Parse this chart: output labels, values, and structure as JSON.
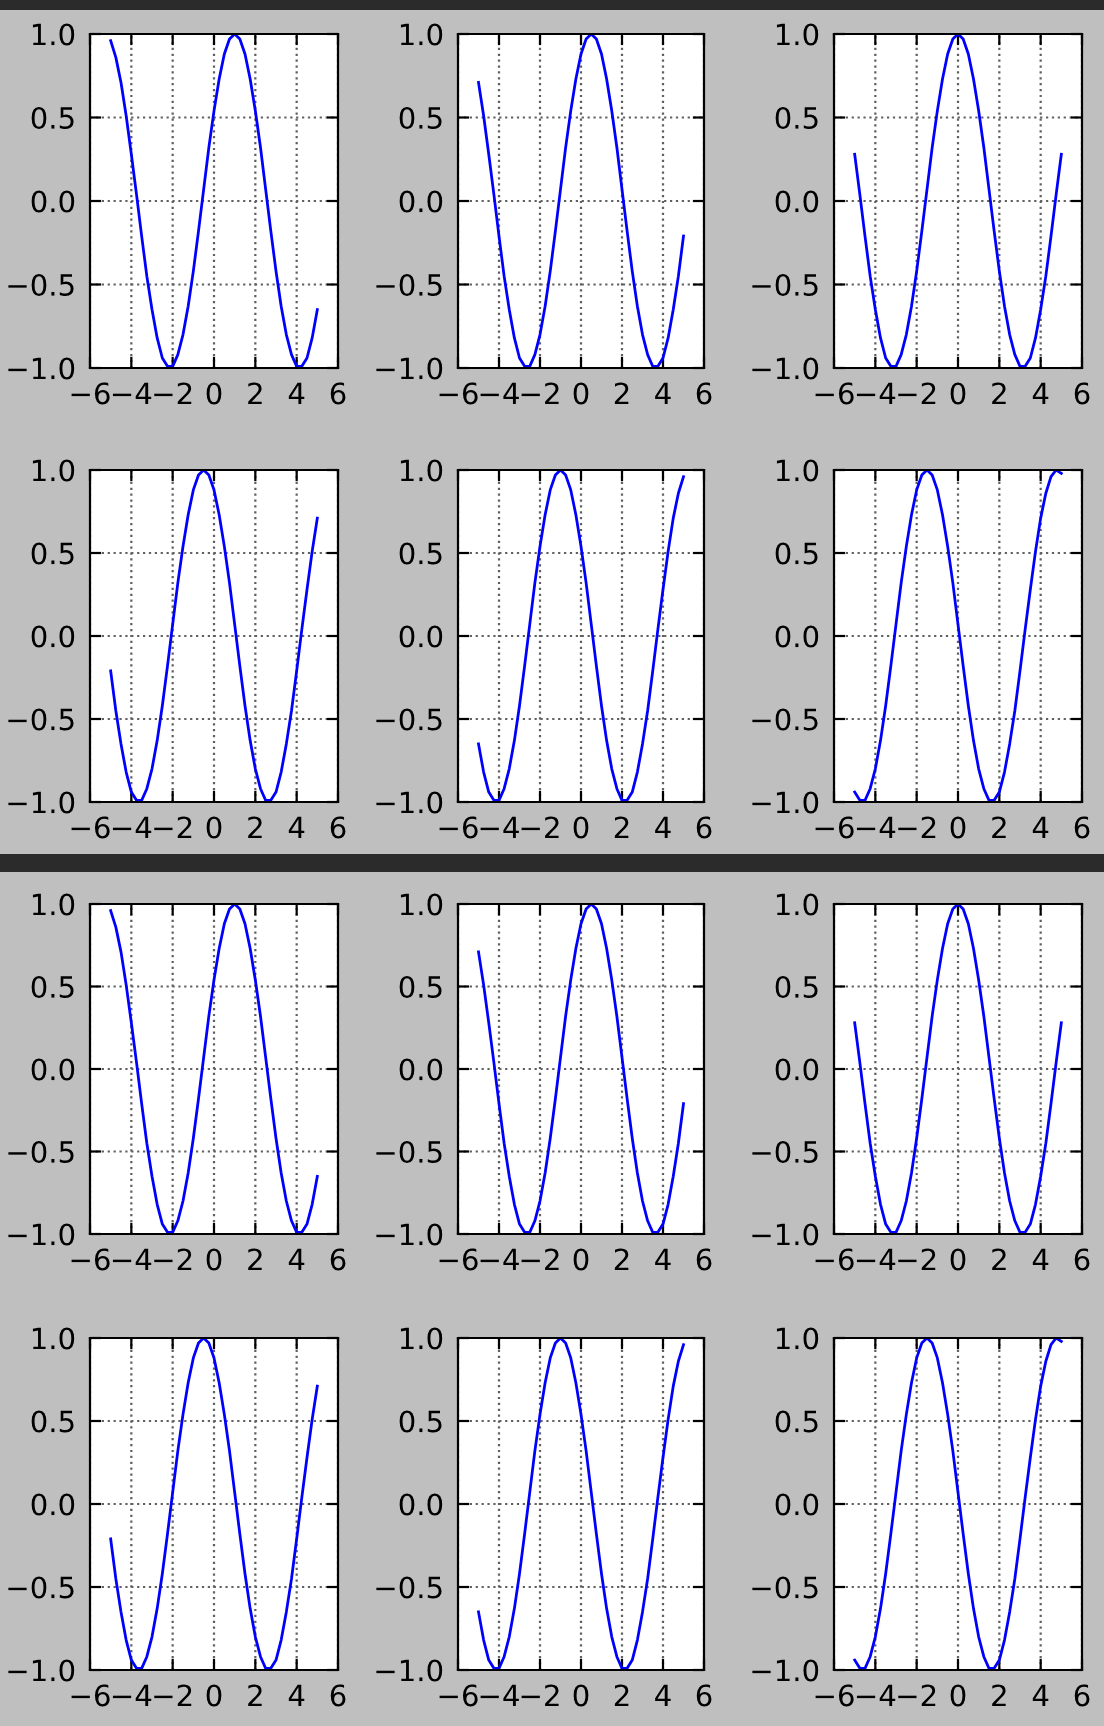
{
  "chart_data": [
    {
      "type": "line",
      "color": "#0000ff",
      "grid": true,
      "xlim": [
        -6,
        6
      ],
      "ylim": [
        -1,
        1
      ],
      "xticks": [
        {
          "value": -6,
          "label": "−6"
        },
        {
          "value": -4,
          "label": "−4"
        },
        {
          "value": -2,
          "label": "−2"
        },
        0,
        2,
        4,
        6
      ],
      "yticks": [
        {
          "value": -1,
          "label": "−1.0"
        },
        {
          "value": -0.5,
          "label": "−0.5"
        },
        {
          "value": 0,
          "label": "0.0"
        },
        {
          "value": 0.5,
          "label": "0.5"
        },
        {
          "value": 1,
          "label": "1.0"
        }
      ],
      "x": [
        -5,
        -4.75,
        -4.5,
        -4.25,
        -4,
        -3.75,
        -3.5,
        -3.25,
        -3,
        -2.75,
        -2.5,
        -2.25,
        -2,
        -1.75,
        -1.5,
        -1.25,
        -1,
        -0.75,
        -0.5,
        -0.25,
        0,
        0.25,
        0.5,
        0.75,
        1,
        1.25,
        1.5,
        1.75,
        2,
        2.25,
        2.5,
        2.75,
        3,
        3.25,
        3.5,
        3.75,
        4,
        4.25,
        4.5,
        4.75,
        5
      ],
      "values": [
        0.96,
        0.86,
        0.71,
        0.51,
        0.28,
        0.04,
        -0.21,
        -0.45,
        -0.65,
        -0.82,
        -0.94,
        -0.99,
        -0.99,
        -0.92,
        -0.8,
        -0.63,
        -0.42,
        -0.18,
        0.07,
        0.32,
        0.54,
        0.73,
        0.88,
        0.97,
        1.0,
        0.97,
        0.88,
        0.73,
        0.54,
        0.32,
        0.07,
        -0.18,
        -0.42,
        -0.63,
        -0.8,
        -0.92,
        -0.99,
        -0.99,
        -0.94,
        -0.82,
        -0.65
      ]
    },
    {
      "type": "line",
      "color": "#0000ff",
      "grid": true,
      "xlim": [
        -6,
        6
      ],
      "ylim": [
        -1,
        1
      ],
      "xticks": [
        {
          "value": -6,
          "label": "−6"
        },
        {
          "value": -4,
          "label": "−4"
        },
        {
          "value": -2,
          "label": "−2"
        },
        0,
        2,
        4,
        6
      ],
      "yticks": [
        {
          "value": -1,
          "label": "−1.0"
        },
        {
          "value": -0.5,
          "label": "−0.5"
        },
        {
          "value": 0,
          "label": "0.0"
        },
        {
          "value": 0.5,
          "label": "0.5"
        },
        {
          "value": 1,
          "label": "1.0"
        }
      ],
      "x": [
        -5,
        -4.75,
        -4.5,
        -4.25,
        -4,
        -3.75,
        -3.5,
        -3.25,
        -3,
        -2.75,
        -2.5,
        -2.25,
        -2,
        -1.75,
        -1.5,
        -1.25,
        -1,
        -0.75,
        -0.5,
        -0.25,
        0,
        0.25,
        0.5,
        0.75,
        1,
        1.25,
        1.5,
        1.75,
        2,
        2.25,
        2.5,
        2.75,
        3,
        3.25,
        3.5,
        3.75,
        4,
        4.25,
        4.5,
        4.75,
        5
      ],
      "values": [
        0.71,
        0.51,
        0.28,
        0.04,
        -0.21,
        -0.45,
        -0.65,
        -0.82,
        -0.94,
        -0.99,
        -0.99,
        -0.92,
        -0.8,
        -0.63,
        -0.42,
        -0.18,
        0.07,
        0.32,
        0.54,
        0.73,
        0.88,
        0.97,
        1.0,
        0.97,
        0.88,
        0.73,
        0.54,
        0.32,
        0.07,
        -0.18,
        -0.42,
        -0.63,
        -0.8,
        -0.92,
        -0.99,
        -0.99,
        -0.94,
        -0.82,
        -0.65,
        -0.45,
        -0.21
      ]
    },
    {
      "type": "line",
      "color": "#0000ff",
      "grid": true,
      "xlim": [
        -6,
        6
      ],
      "ylim": [
        -1,
        1
      ],
      "xticks": [
        {
          "value": -6,
          "label": "−6"
        },
        {
          "value": -4,
          "label": "−4"
        },
        {
          "value": -2,
          "label": "−2"
        },
        0,
        2,
        4,
        6
      ],
      "yticks": [
        {
          "value": -1,
          "label": "−1.0"
        },
        {
          "value": -0.5,
          "label": "−0.5"
        },
        {
          "value": 0,
          "label": "0.0"
        },
        {
          "value": 0.5,
          "label": "0.5"
        },
        {
          "value": 1,
          "label": "1.0"
        }
      ],
      "x": [
        -5,
        -4.75,
        -4.5,
        -4.25,
        -4,
        -3.75,
        -3.5,
        -3.25,
        -3,
        -2.75,
        -2.5,
        -2.25,
        -2,
        -1.75,
        -1.5,
        -1.25,
        -1,
        -0.75,
        -0.5,
        -0.25,
        0,
        0.25,
        0.5,
        0.75,
        1,
        1.25,
        1.5,
        1.75,
        2,
        2.25,
        2.5,
        2.75,
        3,
        3.25,
        3.5,
        3.75,
        4,
        4.25,
        4.5,
        4.75,
        5
      ],
      "values": [
        0.28,
        0.04,
        -0.21,
        -0.45,
        -0.65,
        -0.82,
        -0.94,
        -0.99,
        -0.99,
        -0.92,
        -0.8,
        -0.63,
        -0.42,
        -0.18,
        0.07,
        0.32,
        0.54,
        0.73,
        0.88,
        0.97,
        1.0,
        0.97,
        0.88,
        0.73,
        0.54,
        0.32,
        0.07,
        -0.18,
        -0.42,
        -0.63,
        -0.8,
        -0.92,
        -0.99,
        -0.99,
        -0.94,
        -0.82,
        -0.65,
        -0.45,
        -0.21,
        0.04,
        0.28
      ]
    },
    {
      "type": "line",
      "color": "#0000ff",
      "grid": true,
      "xlim": [
        -6,
        6
      ],
      "ylim": [
        -1,
        1
      ],
      "xticks": [
        {
          "value": -6,
          "label": "−6"
        },
        {
          "value": -4,
          "label": "−4"
        },
        {
          "value": -2,
          "label": "−2"
        },
        0,
        2,
        4,
        6
      ],
      "yticks": [
        {
          "value": -1,
          "label": "−1.0"
        },
        {
          "value": -0.5,
          "label": "−0.5"
        },
        {
          "value": 0,
          "label": "0.0"
        },
        {
          "value": 0.5,
          "label": "0.5"
        },
        {
          "value": 1,
          "label": "1.0"
        }
      ],
      "x": [
        -5,
        -4.75,
        -4.5,
        -4.25,
        -4,
        -3.75,
        -3.5,
        -3.25,
        -3,
        -2.75,
        -2.5,
        -2.25,
        -2,
        -1.75,
        -1.5,
        -1.25,
        -1,
        -0.75,
        -0.5,
        -0.25,
        0,
        0.25,
        0.5,
        0.75,
        1,
        1.25,
        1.5,
        1.75,
        2,
        2.25,
        2.5,
        2.75,
        3,
        3.25,
        3.5,
        3.75,
        4,
        4.25,
        4.5,
        4.75,
        5
      ],
      "values": [
        -0.21,
        -0.45,
        -0.65,
        -0.82,
        -0.94,
        -0.99,
        -0.99,
        -0.92,
        -0.8,
        -0.63,
        -0.42,
        -0.18,
        0.07,
        0.32,
        0.54,
        0.73,
        0.88,
        0.97,
        1.0,
        0.97,
        0.88,
        0.73,
        0.54,
        0.32,
        0.07,
        -0.18,
        -0.42,
        -0.63,
        -0.8,
        -0.92,
        -0.99,
        -0.99,
        -0.94,
        -0.82,
        -0.65,
        -0.45,
        -0.21,
        0.04,
        0.28,
        0.51,
        0.71
      ]
    },
    {
      "type": "line",
      "color": "#0000ff",
      "grid": true,
      "xlim": [
        -6,
        6
      ],
      "ylim": [
        -1,
        1
      ],
      "xticks": [
        {
          "value": -6,
          "label": "−6"
        },
        {
          "value": -4,
          "label": "−4"
        },
        {
          "value": -2,
          "label": "−2"
        },
        0,
        2,
        4,
        6
      ],
      "yticks": [
        {
          "value": -1,
          "label": "−1.0"
        },
        {
          "value": -0.5,
          "label": "−0.5"
        },
        {
          "value": 0,
          "label": "0.0"
        },
        {
          "value": 0.5,
          "label": "0.5"
        },
        {
          "value": 1,
          "label": "1.0"
        }
      ],
      "x": [
        -5,
        -4.75,
        -4.5,
        -4.25,
        -4,
        -3.75,
        -3.5,
        -3.25,
        -3,
        -2.75,
        -2.5,
        -2.25,
        -2,
        -1.75,
        -1.5,
        -1.25,
        -1,
        -0.75,
        -0.5,
        -0.25,
        0,
        0.25,
        0.5,
        0.75,
        1,
        1.25,
        1.5,
        1.75,
        2,
        2.25,
        2.5,
        2.75,
        3,
        3.25,
        3.5,
        3.75,
        4,
        4.25,
        4.5,
        4.75,
        5
      ],
      "values": [
        -0.65,
        -0.82,
        -0.94,
        -0.99,
        -0.99,
        -0.92,
        -0.8,
        -0.63,
        -0.42,
        -0.18,
        0.07,
        0.32,
        0.54,
        0.73,
        0.88,
        0.97,
        1.0,
        0.97,
        0.88,
        0.73,
        0.54,
        0.32,
        0.07,
        -0.18,
        -0.42,
        -0.63,
        -0.8,
        -0.92,
        -0.99,
        -0.99,
        -0.94,
        -0.82,
        -0.65,
        -0.45,
        -0.21,
        0.04,
        0.28,
        0.51,
        0.71,
        0.86,
        0.96
      ]
    },
    {
      "type": "line",
      "color": "#0000ff",
      "grid": true,
      "xlim": [
        -6,
        6
      ],
      "ylim": [
        -1,
        1
      ],
      "xticks": [
        {
          "value": -6,
          "label": "−6"
        },
        {
          "value": -4,
          "label": "−4"
        },
        {
          "value": -2,
          "label": "−2"
        },
        0,
        2,
        4,
        6
      ],
      "yticks": [
        {
          "value": -1,
          "label": "−1.0"
        },
        {
          "value": -0.5,
          "label": "−0.5"
        },
        {
          "value": 0,
          "label": "0.0"
        },
        {
          "value": 0.5,
          "label": "0.5"
        },
        {
          "value": 1,
          "label": "1.0"
        }
      ],
      "x": [
        -5,
        -4.75,
        -4.5,
        -4.25,
        -4,
        -3.75,
        -3.5,
        -3.25,
        -3,
        -2.75,
        -2.5,
        -2.25,
        -2,
        -1.75,
        -1.5,
        -1.25,
        -1,
        -0.75,
        -0.5,
        -0.25,
        0,
        0.25,
        0.5,
        0.75,
        1,
        1.25,
        1.5,
        1.75,
        2,
        2.25,
        2.5,
        2.75,
        3,
        3.25,
        3.5,
        3.75,
        4,
        4.25,
        4.5,
        4.75,
        5
      ],
      "values": [
        -0.94,
        -0.99,
        -0.99,
        -0.92,
        -0.8,
        -0.63,
        -0.42,
        -0.18,
        0.07,
        0.32,
        0.54,
        0.73,
        0.88,
        0.97,
        1.0,
        0.97,
        0.88,
        0.73,
        0.54,
        0.32,
        0.07,
        -0.18,
        -0.42,
        -0.63,
        -0.8,
        -0.92,
        -0.99,
        -0.99,
        -0.94,
        -0.82,
        -0.65,
        -0.45,
        -0.21,
        0.04,
        0.28,
        0.51,
        0.71,
        0.86,
        0.96,
        1.0,
        0.98
      ]
    },
    {
      "type": "line",
      "color": "#0000ff",
      "grid": true,
      "xlim": [
        -6,
        6
      ],
      "ylim": [
        -1,
        1
      ],
      "xticks": [
        {
          "value": -6,
          "label": "−6"
        },
        {
          "value": -4,
          "label": "−4"
        },
        {
          "value": -2,
          "label": "−2"
        },
        0,
        2,
        4,
        6
      ],
      "yticks": [
        {
          "value": -1,
          "label": "−1.0"
        },
        {
          "value": -0.5,
          "label": "−0.5"
        },
        {
          "value": 0,
          "label": "0.0"
        },
        {
          "value": 0.5,
          "label": "0.5"
        },
        {
          "value": 1,
          "label": "1.0"
        }
      ],
      "x": [
        -5,
        -4.75,
        -4.5,
        -4.25,
        -4,
        -3.75,
        -3.5,
        -3.25,
        -3,
        -2.75,
        -2.5,
        -2.25,
        -2,
        -1.75,
        -1.5,
        -1.25,
        -1,
        -0.75,
        -0.5,
        -0.25,
        0,
        0.25,
        0.5,
        0.75,
        1,
        1.25,
        1.5,
        1.75,
        2,
        2.25,
        2.5,
        2.75,
        3,
        3.25,
        3.5,
        3.75,
        4,
        4.25,
        4.5,
        4.75,
        5
      ],
      "values": [
        0.96,
        0.86,
        0.71,
        0.51,
        0.28,
        0.04,
        -0.21,
        -0.45,
        -0.65,
        -0.82,
        -0.94,
        -0.99,
        -0.99,
        -0.92,
        -0.8,
        -0.63,
        -0.42,
        -0.18,
        0.07,
        0.32,
        0.54,
        0.73,
        0.88,
        0.97,
        1.0,
        0.97,
        0.88,
        0.73,
        0.54,
        0.32,
        0.07,
        -0.18,
        -0.42,
        -0.63,
        -0.8,
        -0.92,
        -0.99,
        -0.99,
        -0.94,
        -0.82,
        -0.65
      ]
    },
    {
      "type": "line",
      "color": "#0000ff",
      "grid": true,
      "xlim": [
        -6,
        6
      ],
      "ylim": [
        -1,
        1
      ],
      "xticks": [
        {
          "value": -6,
          "label": "−6"
        },
        {
          "value": -4,
          "label": "−4"
        },
        {
          "value": -2,
          "label": "−2"
        },
        0,
        2,
        4,
        6
      ],
      "yticks": [
        {
          "value": -1,
          "label": "−1.0"
        },
        {
          "value": -0.5,
          "label": "−0.5"
        },
        {
          "value": 0,
          "label": "0.0"
        },
        {
          "value": 0.5,
          "label": "0.5"
        },
        {
          "value": 1,
          "label": "1.0"
        }
      ],
      "x": [
        -5,
        -4.75,
        -4.5,
        -4.25,
        -4,
        -3.75,
        -3.5,
        -3.25,
        -3,
        -2.75,
        -2.5,
        -2.25,
        -2,
        -1.75,
        -1.5,
        -1.25,
        -1,
        -0.75,
        -0.5,
        -0.25,
        0,
        0.25,
        0.5,
        0.75,
        1,
        1.25,
        1.5,
        1.75,
        2,
        2.25,
        2.5,
        2.75,
        3,
        3.25,
        3.5,
        3.75,
        4,
        4.25,
        4.5,
        4.75,
        5
      ],
      "values": [
        0.71,
        0.51,
        0.28,
        0.04,
        -0.21,
        -0.45,
        -0.65,
        -0.82,
        -0.94,
        -0.99,
        -0.99,
        -0.92,
        -0.8,
        -0.63,
        -0.42,
        -0.18,
        0.07,
        0.32,
        0.54,
        0.73,
        0.88,
        0.97,
        1.0,
        0.97,
        0.88,
        0.73,
        0.54,
        0.32,
        0.07,
        -0.18,
        -0.42,
        -0.63,
        -0.8,
        -0.92,
        -0.99,
        -0.99,
        -0.94,
        -0.82,
        -0.65,
        -0.45,
        -0.21
      ]
    },
    {
      "type": "line",
      "color": "#0000ff",
      "grid": true,
      "xlim": [
        -6,
        6
      ],
      "ylim": [
        -1,
        1
      ],
      "xticks": [
        {
          "value": -6,
          "label": "−6"
        },
        {
          "value": -4,
          "label": "−4"
        },
        {
          "value": -2,
          "label": "−2"
        },
        0,
        2,
        4,
        6
      ],
      "yticks": [
        {
          "value": -1,
          "label": "−1.0"
        },
        {
          "value": -0.5,
          "label": "−0.5"
        },
        {
          "value": 0,
          "label": "0.0"
        },
        {
          "value": 0.5,
          "label": "0.5"
        },
        {
          "value": 1,
          "label": "1.0"
        }
      ],
      "x": [
        -5,
        -4.75,
        -4.5,
        -4.25,
        -4,
        -3.75,
        -3.5,
        -3.25,
        -3,
        -2.75,
        -2.5,
        -2.25,
        -2,
        -1.75,
        -1.5,
        -1.25,
        -1,
        -0.75,
        -0.5,
        -0.25,
        0,
        0.25,
        0.5,
        0.75,
        1,
        1.25,
        1.5,
        1.75,
        2,
        2.25,
        2.5,
        2.75,
        3,
        3.25,
        3.5,
        3.75,
        4,
        4.25,
        4.5,
        4.75,
        5
      ],
      "values": [
        0.28,
        0.04,
        -0.21,
        -0.45,
        -0.65,
        -0.82,
        -0.94,
        -0.99,
        -0.99,
        -0.92,
        -0.8,
        -0.63,
        -0.42,
        -0.18,
        0.07,
        0.32,
        0.54,
        0.73,
        0.88,
        0.97,
        1.0,
        0.97,
        0.88,
        0.73,
        0.54,
        0.32,
        0.07,
        -0.18,
        -0.42,
        -0.63,
        -0.8,
        -0.92,
        -0.99,
        -0.99,
        -0.94,
        -0.82,
        -0.65,
        -0.45,
        -0.21,
        0.04,
        0.28
      ]
    },
    {
      "type": "line",
      "color": "#0000ff",
      "grid": true,
      "xlim": [
        -6,
        6
      ],
      "ylim": [
        -1,
        1
      ],
      "xticks": [
        {
          "value": -6,
          "label": "−6"
        },
        {
          "value": -4,
          "label": "−4"
        },
        {
          "value": -2,
          "label": "−2"
        },
        0,
        2,
        4,
        6
      ],
      "yticks": [
        {
          "value": -1,
          "label": "−1.0"
        },
        {
          "value": -0.5,
          "label": "−0.5"
        },
        {
          "value": 0,
          "label": "0.0"
        },
        {
          "value": 0.5,
          "label": "0.5"
        },
        {
          "value": 1,
          "label": "1.0"
        }
      ],
      "x": [
        -5,
        -4.75,
        -4.5,
        -4.25,
        -4,
        -3.75,
        -3.5,
        -3.25,
        -3,
        -2.75,
        -2.5,
        -2.25,
        -2,
        -1.75,
        -1.5,
        -1.25,
        -1,
        -0.75,
        -0.5,
        -0.25,
        0,
        0.25,
        0.5,
        0.75,
        1,
        1.25,
        1.5,
        1.75,
        2,
        2.25,
        2.5,
        2.75,
        3,
        3.25,
        3.5,
        3.75,
        4,
        4.25,
        4.5,
        4.75,
        5
      ],
      "values": [
        -0.21,
        -0.45,
        -0.65,
        -0.82,
        -0.94,
        -0.99,
        -0.99,
        -0.92,
        -0.8,
        -0.63,
        -0.42,
        -0.18,
        0.07,
        0.32,
        0.54,
        0.73,
        0.88,
        0.97,
        1.0,
        0.97,
        0.88,
        0.73,
        0.54,
        0.32,
        0.07,
        -0.18,
        -0.42,
        -0.63,
        -0.8,
        -0.92,
        -0.99,
        -0.99,
        -0.94,
        -0.82,
        -0.65,
        -0.45,
        -0.21,
        0.04,
        0.28,
        0.51,
        0.71
      ]
    },
    {
      "type": "line",
      "color": "#0000ff",
      "grid": true,
      "xlim": [
        -6,
        6
      ],
      "ylim": [
        -1,
        1
      ],
      "xticks": [
        {
          "value": -6,
          "label": "−6"
        },
        {
          "value": -4,
          "label": "−4"
        },
        {
          "value": -2,
          "label": "−2"
        },
        0,
        2,
        4,
        6
      ],
      "yticks": [
        {
          "value": -1,
          "label": "−1.0"
        },
        {
          "value": -0.5,
          "label": "−0.5"
        },
        {
          "value": 0,
          "label": "0.0"
        },
        {
          "value": 0.5,
          "label": "0.5"
        },
        {
          "value": 1,
          "label": "1.0"
        }
      ],
      "x": [
        -5,
        -4.75,
        -4.5,
        -4.25,
        -4,
        -3.75,
        -3.5,
        -3.25,
        -3,
        -2.75,
        -2.5,
        -2.25,
        -2,
        -1.75,
        -1.5,
        -1.25,
        -1,
        -0.75,
        -0.5,
        -0.25,
        0,
        0.25,
        0.5,
        0.75,
        1,
        1.25,
        1.5,
        1.75,
        2,
        2.25,
        2.5,
        2.75,
        3,
        3.25,
        3.5,
        3.75,
        4,
        4.25,
        4.5,
        4.75,
        5
      ],
      "values": [
        -0.65,
        -0.82,
        -0.94,
        -0.99,
        -0.99,
        -0.92,
        -0.8,
        -0.63,
        -0.42,
        -0.18,
        0.07,
        0.32,
        0.54,
        0.73,
        0.88,
        0.97,
        1.0,
        0.97,
        0.88,
        0.73,
        0.54,
        0.32,
        0.07,
        -0.18,
        -0.42,
        -0.63,
        -0.8,
        -0.92,
        -0.99,
        -0.99,
        -0.94,
        -0.82,
        -0.65,
        -0.45,
        -0.21,
        0.04,
        0.28,
        0.51,
        0.71,
        0.86,
        0.96
      ]
    },
    {
      "type": "line",
      "color": "#0000ff",
      "grid": true,
      "xlim": [
        -6,
        6
      ],
      "ylim": [
        -1,
        1
      ],
      "xticks": [
        {
          "value": -6,
          "label": "−6"
        },
        {
          "value": -4,
          "label": "−4"
        },
        {
          "value": -2,
          "label": "−2"
        },
        0,
        2,
        4,
        6
      ],
      "yticks": [
        {
          "value": -1,
          "label": "−1.0"
        },
        {
          "value": -0.5,
          "label": "−0.5"
        },
        {
          "value": 0,
          "label": "0.0"
        },
        {
          "value": 0.5,
          "label": "0.5"
        },
        {
          "value": 1,
          "label": "1.0"
        }
      ],
      "x": [
        -5,
        -4.75,
        -4.5,
        -4.25,
        -4,
        -3.75,
        -3.5,
        -3.25,
        -3,
        -2.75,
        -2.5,
        -2.25,
        -2,
        -1.75,
        -1.5,
        -1.25,
        -1,
        -0.75,
        -0.5,
        -0.25,
        0,
        0.25,
        0.5,
        0.75,
        1,
        1.25,
        1.5,
        1.75,
        2,
        2.25,
        2.5,
        2.75,
        3,
        3.25,
        3.5,
        3.75,
        4,
        4.25,
        4.5,
        4.75,
        5
      ],
      "values": [
        -0.94,
        -0.99,
        -0.99,
        -0.92,
        -0.8,
        -0.63,
        -0.42,
        -0.18,
        0.07,
        0.32,
        0.54,
        0.73,
        0.88,
        0.97,
        1.0,
        0.97,
        0.88,
        0.73,
        0.54,
        0.32,
        0.07,
        -0.18,
        -0.42,
        -0.63,
        -0.8,
        -0.92,
        -0.99,
        -0.99,
        -0.94,
        -0.82,
        -0.65,
        -0.45,
        -0.21,
        0.04,
        0.28,
        0.51,
        0.71,
        0.86,
        0.96,
        1.0,
        0.98
      ]
    }
  ]
}
